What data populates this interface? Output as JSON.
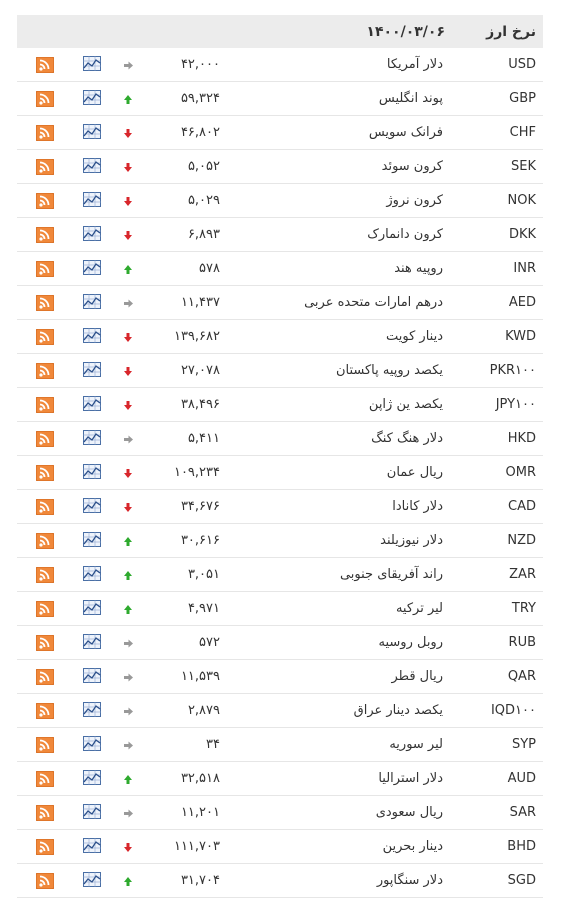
{
  "header": {
    "title": "نرخ ارز",
    "date": "۱۴۰۰/۰۳/۰۶"
  },
  "table": {
    "rows": [
      {
        "code": "USD",
        "name": "دلار آمریکا",
        "value": "۴۲,۰۰۰",
        "trend": "flat"
      },
      {
        "code": "GBP",
        "name": "پوند انگلیس",
        "value": "۵۹,۳۲۴",
        "trend": "up"
      },
      {
        "code": "CHF",
        "name": "فرانک سویس",
        "value": "۴۶,۸۰۲",
        "trend": "down"
      },
      {
        "code": "SEK",
        "name": "کرون سوئد",
        "value": "۵,۰۵۲",
        "trend": "down"
      },
      {
        "code": "NOK",
        "name": "کرون نروژ",
        "value": "۵,۰۲۹",
        "trend": "down"
      },
      {
        "code": "DKK",
        "name": "کرون دانمارک",
        "value": "۶,۸۹۳",
        "trend": "down"
      },
      {
        "code": "INR",
        "name": "روپیه هند",
        "value": "۵۷۸",
        "trend": "up"
      },
      {
        "code": "AED",
        "name": "درهم امارات متحده عربی",
        "value": "۱۱,۴۳۷",
        "trend": "flat"
      },
      {
        "code": "KWD",
        "name": "دینار کویت",
        "value": "۱۳۹,۶۸۲",
        "trend": "down"
      },
      {
        "code": "PKR۱۰۰",
        "name": "یکصد روپیه پاکستان",
        "value": "۲۷,۰۷۸",
        "trend": "down"
      },
      {
        "code": "JPY۱۰۰",
        "name": "یکصد ین ژاپن",
        "value": "۳۸,۴۹۶",
        "trend": "down"
      },
      {
        "code": "HKD",
        "name": "دلار هنگ کنگ",
        "value": "۵,۴۱۱",
        "trend": "flat"
      },
      {
        "code": "OMR",
        "name": "ریال عمان",
        "value": "۱۰۹,۲۳۴",
        "trend": "down"
      },
      {
        "code": "CAD",
        "name": "دلار کانادا",
        "value": "۳۴,۶۷۶",
        "trend": "down"
      },
      {
        "code": "NZD",
        "name": "دلار نیوزیلند",
        "value": "۳۰,۶۱۶",
        "trend": "up"
      },
      {
        "code": "ZAR",
        "name": "راند آفریقای جنوبی",
        "value": "۳,۰۵۱",
        "trend": "up"
      },
      {
        "code": "TRY",
        "name": "لیر ترکیه",
        "value": "۴,۹۷۱",
        "trend": "up"
      },
      {
        "code": "RUB",
        "name": "روبل روسیه",
        "value": "۵۷۲",
        "trend": "flat"
      },
      {
        "code": "QAR",
        "name": "ریال قطر",
        "value": "۱۱,۵۳۹",
        "trend": "flat"
      },
      {
        "code": "IQD۱۰۰",
        "name": "یکصد دینار عراق",
        "value": "۲,۸۷۹",
        "trend": "flat"
      },
      {
        "code": "SYP",
        "name": "لیر سوریه",
        "value": "۳۴",
        "trend": "flat"
      },
      {
        "code": "AUD",
        "name": "دلار استرالیا",
        "value": "۳۲,۵۱۸",
        "trend": "up"
      },
      {
        "code": "SAR",
        "name": "ریال سعودی",
        "value": "۱۱,۲۰۱",
        "trend": "flat"
      },
      {
        "code": "BHD",
        "name": "دینار بحرین",
        "value": "۱۱۱,۷۰۳",
        "trend": "down"
      },
      {
        "code": "SGD",
        "name": "دلار سنگاپور",
        "value": "۳۱,۷۰۴",
        "trend": "up"
      }
    ]
  }
}
